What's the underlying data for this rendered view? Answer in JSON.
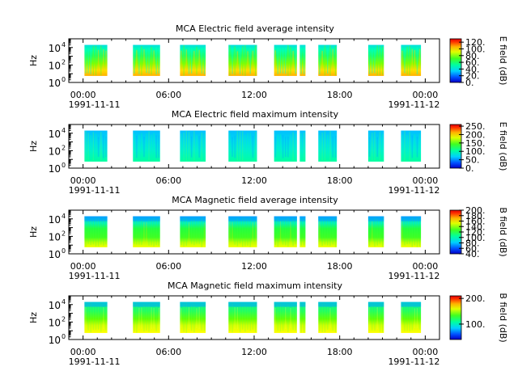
{
  "chart_data": [
    {
      "type": "heatmap",
      "title": "MCA  Electric field average intensity",
      "ylabel": "Hz",
      "colorbar_label": "E field (dB)",
      "colorbar_range": [
        0,
        130
      ],
      "colorbar_ticks": [
        "0.",
        "20.",
        "40.",
        "60.",
        "80.",
        "100.",
        "120."
      ],
      "colorbar_tick_values": [
        0,
        20,
        40,
        60,
        80,
        100,
        120
      ],
      "y_tick_labels": [
        "10",
        "10",
        "10"
      ],
      "y_tick_exponents": [
        "0",
        "2",
        "4"
      ],
      "y_scale": "log",
      "ylim": [
        1,
        100000
      ],
      "x_tick_labels": [
        "00:00",
        "06:00",
        "12:00",
        "18:00",
        "00:00"
      ],
      "x_tick_hours": [
        0,
        6,
        12,
        18,
        24
      ],
      "x_date_left": "1991-11-11",
      "x_date_right": "1991-11-12",
      "xlim_hours": [
        -1,
        25
      ],
      "freq_range_hz": [
        5.6,
        20000
      ],
      "style": "eavg",
      "segments": [
        [
          0.1,
          1.7
        ],
        [
          3.5,
          5.4
        ],
        [
          6.8,
          8.6
        ],
        [
          10.2,
          12.0
        ],
        [
          12.0,
          12.2
        ],
        [
          13.4,
          15.0
        ],
        [
          15.2,
          15.6
        ],
        [
          16.5,
          17.8
        ],
        [
          20.0,
          21.1
        ],
        [
          22.3,
          23.7
        ]
      ]
    },
    {
      "type": "heatmap",
      "title": "MCA  Electric field maximum intensity",
      "ylabel": "Hz",
      "colorbar_label": "E field (dB)",
      "colorbar_range": [
        0,
        260
      ],
      "colorbar_ticks": [
        "0.",
        "50.",
        "100.",
        "150.",
        "200.",
        "250."
      ],
      "colorbar_tick_values": [
        0,
        50,
        100,
        150,
        200,
        250
      ],
      "y_tick_labels": [
        "10",
        "10",
        "10"
      ],
      "y_tick_exponents": [
        "0",
        "2",
        "4"
      ],
      "y_scale": "log",
      "ylim": [
        1,
        100000
      ],
      "x_tick_labels": [
        "00:00",
        "06:00",
        "12:00",
        "18:00",
        "00:00"
      ],
      "x_tick_hours": [
        0,
        6,
        12,
        18,
        24
      ],
      "x_date_left": "1991-11-11",
      "x_date_right": "1991-11-12",
      "xlim_hours": [
        -1,
        25
      ],
      "freq_range_hz": [
        5.6,
        20000
      ],
      "style": "emax",
      "segments": [
        [
          0.1,
          1.7
        ],
        [
          3.5,
          5.4
        ],
        [
          6.8,
          8.6
        ],
        [
          10.2,
          12.0
        ],
        [
          12.0,
          12.2
        ],
        [
          13.4,
          15.0
        ],
        [
          15.2,
          15.6
        ],
        [
          16.5,
          17.8
        ],
        [
          20.0,
          21.1
        ],
        [
          22.3,
          23.7
        ]
      ]
    },
    {
      "type": "heatmap",
      "title": "MCA  Magnetic field average intensity",
      "ylabel": "Hz",
      "colorbar_label": "B field (dB)",
      "colorbar_range": [
        40,
        200
      ],
      "colorbar_ticks": [
        "40.",
        "60.",
        "80.",
        "100.",
        "120.",
        "140.",
        "160.",
        "180.",
        "200."
      ],
      "colorbar_tick_values": [
        40,
        60,
        80,
        100,
        120,
        140,
        160,
        180,
        200
      ],
      "y_tick_labels": [
        "10",
        "10",
        "10"
      ],
      "y_tick_exponents": [
        "0",
        "2",
        "4"
      ],
      "y_scale": "log",
      "ylim": [
        1,
        100000
      ],
      "x_tick_labels": [
        "00:00",
        "06:00",
        "12:00",
        "18:00",
        "00:00"
      ],
      "x_tick_hours": [
        0,
        6,
        12,
        18,
        24
      ],
      "x_date_left": "1991-11-11",
      "x_date_right": "1991-11-12",
      "xlim_hours": [
        -1,
        25
      ],
      "freq_range_hz": [
        5.6,
        20000
      ],
      "style": "bavg",
      "segments": [
        [
          0.1,
          1.7
        ],
        [
          3.5,
          5.4
        ],
        [
          6.8,
          8.6
        ],
        [
          10.2,
          12.0
        ],
        [
          12.0,
          12.2
        ],
        [
          13.4,
          15.0
        ],
        [
          15.2,
          15.6
        ],
        [
          16.5,
          17.8
        ],
        [
          20.0,
          21.1
        ],
        [
          22.3,
          23.7
        ]
      ]
    },
    {
      "type": "heatmap",
      "title": "MCA  Magnetic field maximum intensity",
      "ylabel": "Hz",
      "colorbar_label": "B field (dB)",
      "colorbar_range": [
        40,
        210
      ],
      "colorbar_ticks": [
        "100.",
        "200."
      ],
      "colorbar_tick_values": [
        100,
        200
      ],
      "y_tick_labels": [
        "10",
        "10",
        "10"
      ],
      "y_tick_exponents": [
        "0",
        "2",
        "4"
      ],
      "y_scale": "log",
      "ylim": [
        1,
        100000
      ],
      "x_tick_labels": [
        "00:00",
        "06:00",
        "12:00",
        "18:00",
        "00:00"
      ],
      "x_tick_hours": [
        0,
        6,
        12,
        18,
        24
      ],
      "x_date_left": "1991-11-11",
      "x_date_right": "1991-11-12",
      "xlim_hours": [
        -1,
        25
      ],
      "freq_range_hz": [
        5.6,
        20000
      ],
      "style": "bmax",
      "segments": [
        [
          0.1,
          1.7
        ],
        [
          3.5,
          5.4
        ],
        [
          6.8,
          8.6
        ],
        [
          10.2,
          12.0
        ],
        [
          12.0,
          12.2
        ],
        [
          13.4,
          15.0
        ],
        [
          15.2,
          15.6
        ],
        [
          16.5,
          17.8
        ],
        [
          20.0,
          21.1
        ],
        [
          22.3,
          23.7
        ]
      ]
    }
  ]
}
